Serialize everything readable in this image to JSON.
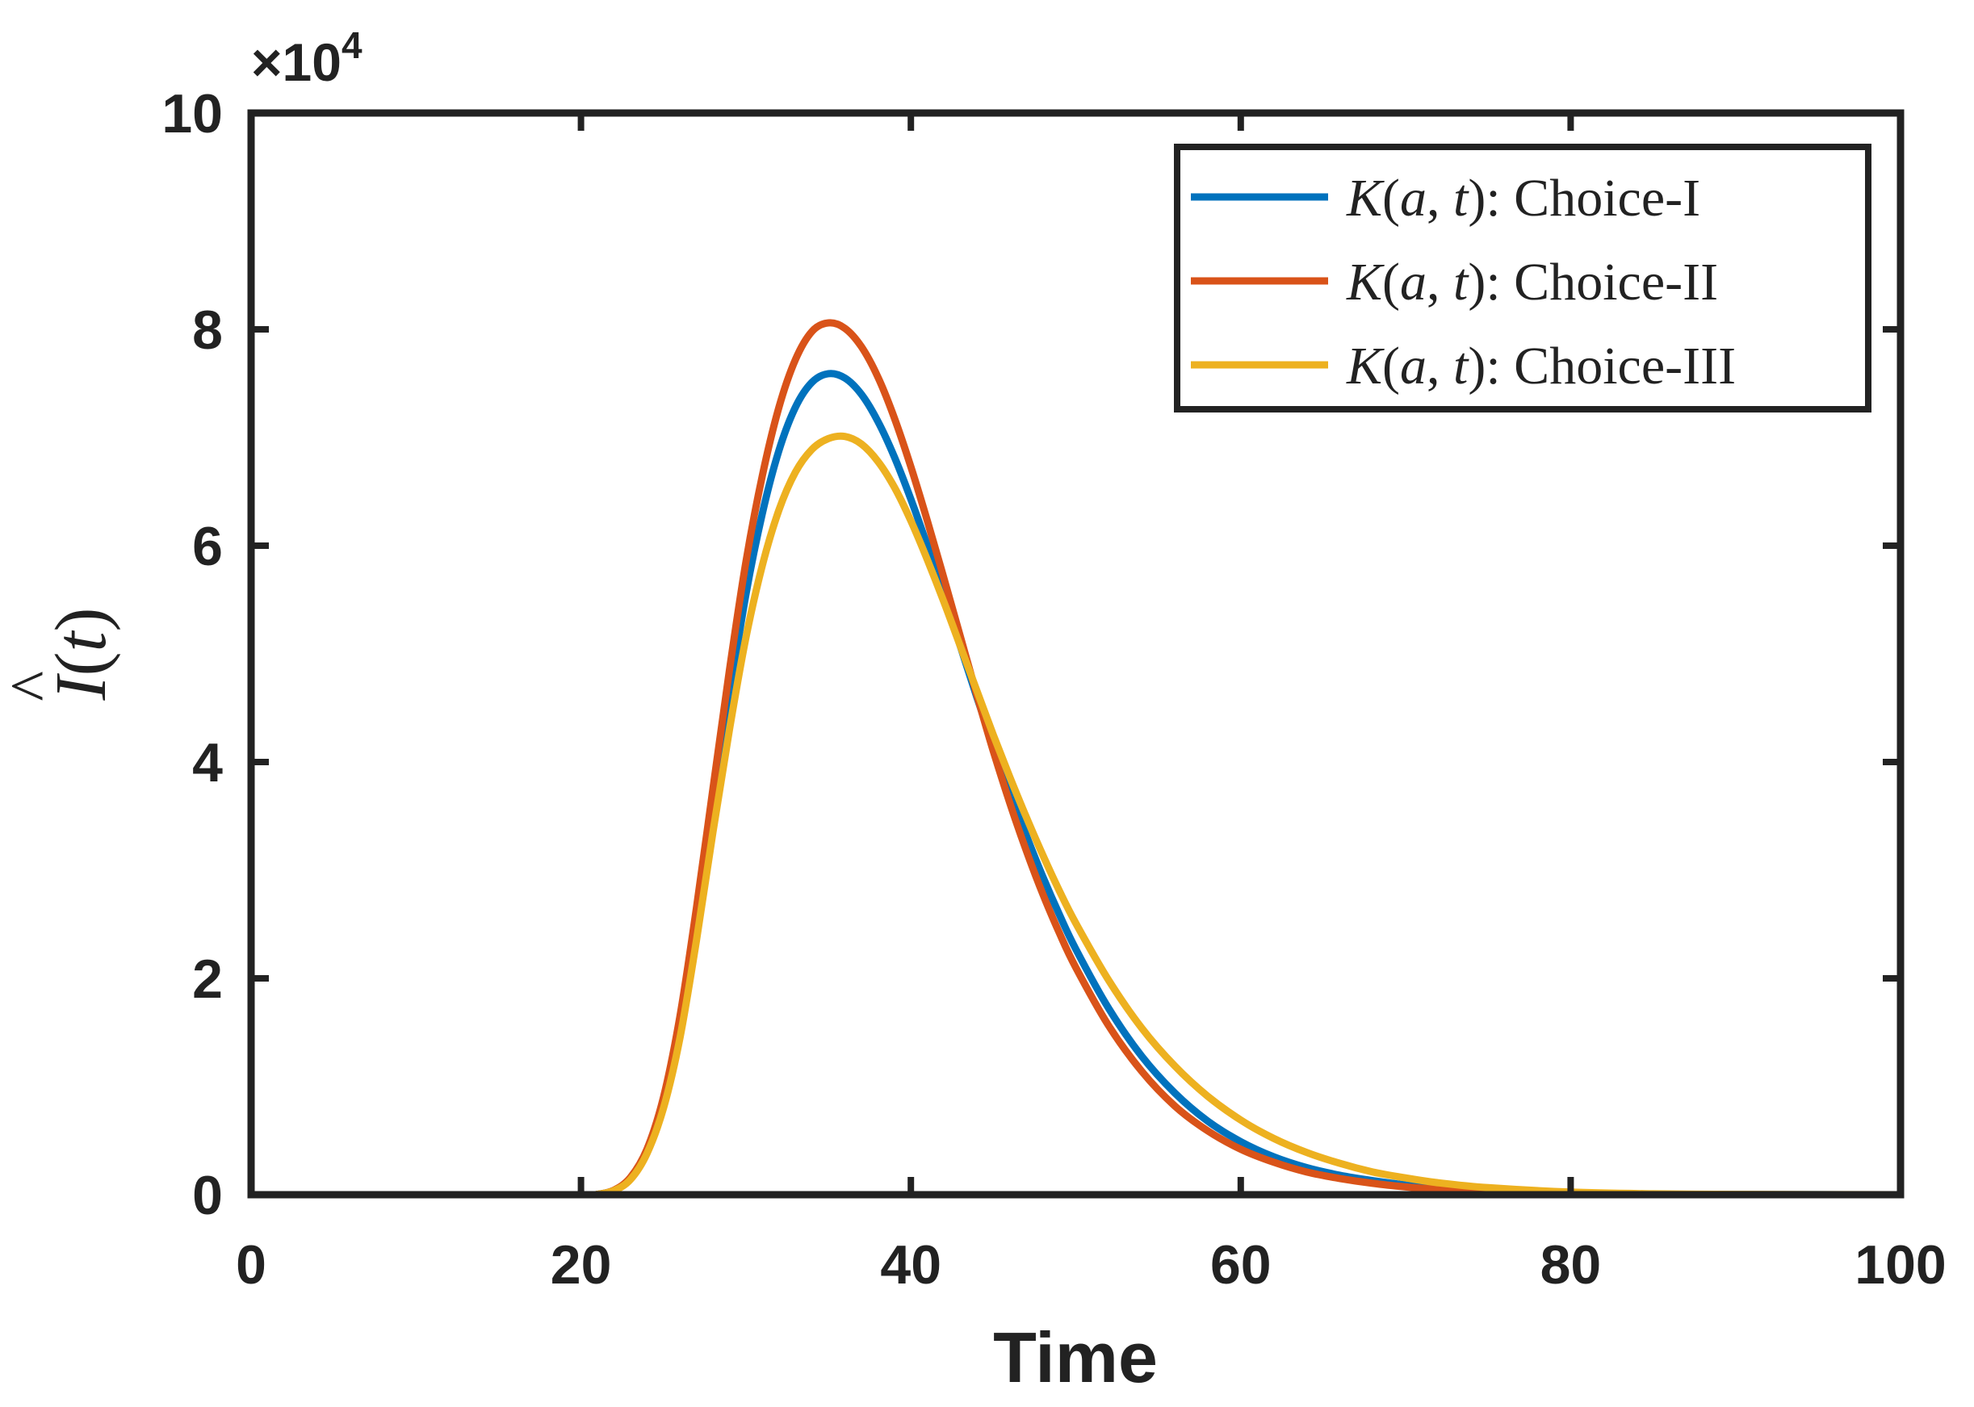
{
  "chart_data": {
    "type": "line",
    "title": "",
    "xlabel": "Time",
    "ylabel": {
      "symbol": "I",
      "hat": "^",
      "open_paren": "(",
      "variable": "t",
      "close_paren": ")"
    },
    "xlim": [
      0,
      100
    ],
    "ylim": [
      0,
      100000
    ],
    "xticks": [
      0,
      20,
      40,
      60,
      80,
      100
    ],
    "xtick_labels": [
      "0",
      "20",
      "40",
      "60",
      "80",
      "100"
    ],
    "yticks": [
      0,
      20000,
      40000,
      60000,
      80000,
      100000
    ],
    "ytick_labels": [
      "0",
      "2",
      "4",
      "6",
      "8",
      "10"
    ],
    "y_exponent": {
      "base": "×10",
      "power": "4"
    },
    "grid": false,
    "legend_position": "top-right",
    "series": [
      {
        "name": "Choice-I",
        "legend": {
          "prefix": "K",
          "open": "(",
          "a": "a",
          "comma": ",",
          "t": "t",
          "close": ")",
          "suffix": ": Choice-I"
        },
        "color": "#0072BD",
        "x": [
          0,
          20,
          21,
          22,
          23,
          24,
          25,
          26,
          27,
          28,
          29,
          30,
          31,
          32,
          33,
          34,
          35,
          36,
          37,
          38,
          39,
          40,
          41,
          42,
          43,
          44,
          45,
          46,
          47,
          48,
          49,
          50,
          52,
          54,
          56,
          58,
          60,
          62,
          64,
          66,
          68,
          70,
          72,
          75,
          80,
          85,
          90,
          95,
          100
        ],
        "y": [
          0,
          0,
          40,
          400,
          1500,
          4000,
          8500,
          15500,
          25000,
          35500,
          46000,
          55500,
          63000,
          68800,
          72800,
          75100,
          75900,
          75500,
          74000,
          71500,
          68200,
          64300,
          60000,
          55400,
          50700,
          46000,
          41500,
          37200,
          33200,
          29400,
          25900,
          22700,
          17200,
          12800,
          9400,
          6800,
          4900,
          3500,
          2500,
          1800,
          1300,
          900,
          620,
          360,
          130,
          45,
          15,
          5,
          0
        ]
      },
      {
        "name": "Choice-II",
        "legend": {
          "prefix": "K",
          "open": "(",
          "a": "a",
          "comma": ",",
          "t": "t",
          "close": ")",
          "suffix": ": Choice-II"
        },
        "color": "#D95319",
        "x": [
          0,
          20,
          21,
          22,
          23,
          24,
          25,
          26,
          27,
          28,
          29,
          30,
          31,
          32,
          33,
          34,
          35,
          36,
          37,
          38,
          39,
          40,
          41,
          42,
          43,
          44,
          45,
          46,
          47,
          48,
          49,
          50,
          52,
          54,
          56,
          58,
          60,
          62,
          64,
          66,
          68,
          70,
          72,
          75,
          80,
          85,
          90,
          95,
          100
        ],
        "y": [
          0,
          0,
          40,
          420,
          1600,
          4200,
          9000,
          16500,
          26500,
          37500,
          48500,
          58500,
          66500,
          72800,
          77200,
          79800,
          80600,
          80100,
          78400,
          75600,
          71800,
          67300,
          62300,
          57000,
          51600,
          46200,
          41000,
          36200,
          31800,
          27800,
          24200,
          21000,
          15600,
          11400,
          8200,
          5900,
          4200,
          3000,
          2100,
          1500,
          1050,
          720,
          490,
          270,
          95,
          30,
          10,
          3,
          0
        ]
      },
      {
        "name": "Choice-III",
        "legend": {
          "prefix": "K",
          "open": "(",
          "a": "a",
          "comma": ",",
          "t": "t",
          "close": ")",
          "suffix": ": Choice-III"
        },
        "color": "#EDB120",
        "x": [
          0,
          20,
          21,
          22,
          23,
          24,
          25,
          26,
          27,
          28,
          29,
          30,
          31,
          32,
          33,
          34,
          35,
          36,
          37,
          38,
          39,
          40,
          41,
          42,
          43,
          44,
          45,
          46,
          47,
          48,
          49,
          50,
          52,
          54,
          56,
          58,
          60,
          62,
          64,
          66,
          68,
          70,
          72,
          75,
          80,
          85,
          90,
          95,
          100
        ],
        "y": [
          0,
          0,
          40,
          380,
          1400,
          3800,
          8000,
          14500,
          23500,
          33500,
          43000,
          51500,
          58200,
          63300,
          66800,
          68900,
          69900,
          70100,
          69400,
          67800,
          65400,
          62300,
          58700,
          54800,
          50700,
          46600,
          42500,
          38600,
          34900,
          31400,
          28100,
          25100,
          19800,
          15400,
          11900,
          9100,
          6900,
          5200,
          3900,
          2900,
          2100,
          1550,
          1100,
          650,
          240,
          85,
          30,
          10,
          0
        ]
      }
    ]
  }
}
